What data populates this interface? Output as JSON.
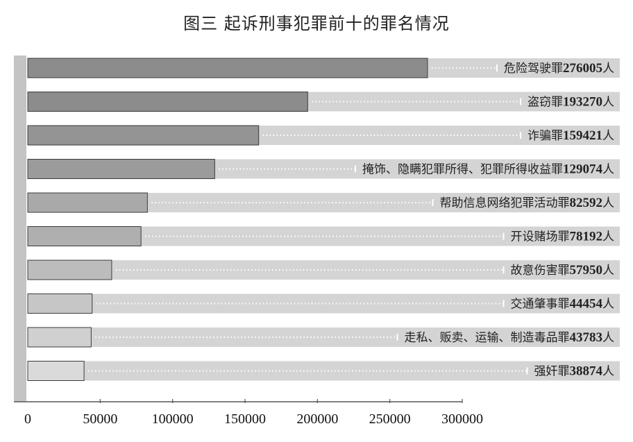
{
  "chart_data": {
    "type": "bar",
    "orientation": "horizontal",
    "title": "图三  起诉刑事犯罪前十的罪名情况",
    "unit": "人",
    "categories": [
      "危险驾驶罪",
      "盗窃罪",
      "诈骗罪",
      "掩饰、隐瞒犯罪所得、犯罪所得收益罪",
      "帮助信息网络犯罪活动罪",
      "开设赌场罪",
      "故意伤害罪",
      "交通肇事罪",
      "走私、贩卖、运输、制造毒品罪",
      "强奸罪"
    ],
    "values": [
      276005,
      193270,
      159421,
      129074,
      82592,
      78192,
      57950,
      44454,
      43783,
      38874
    ],
    "bar_colors": [
      "#8c8c8c",
      "#8c8c8c",
      "#949494",
      "#9b9b9b",
      "#a9a9a9",
      "#afafaf",
      "#bcbcbc",
      "#c6c6c6",
      "#d0d0d0",
      "#dadada"
    ],
    "track_color": "#d4d4d4",
    "xlim": [
      0,
      300000
    ],
    "xticks": [
      0,
      50000,
      100000,
      150000,
      200000,
      250000,
      300000
    ],
    "tick_labels": [
      "0",
      "50000",
      "100000",
      "150000",
      "200000",
      "250000",
      "300000"
    ],
    "legend": "none",
    "grid": false
  }
}
